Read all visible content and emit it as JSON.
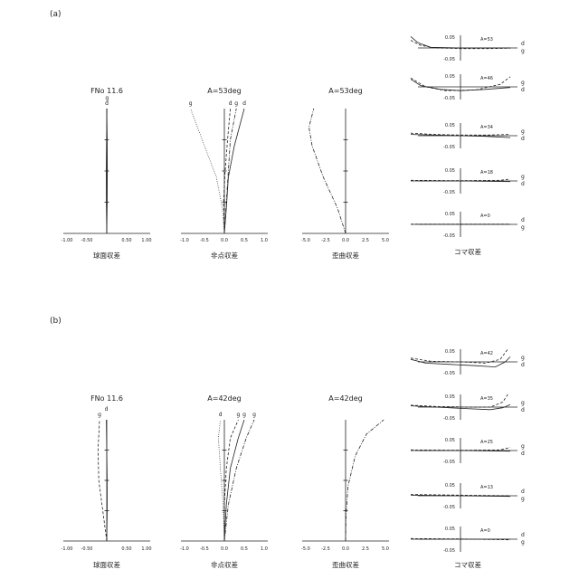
{
  "panels": [
    {
      "label": "(a)",
      "spherical": {
        "title": "FNo 11.6",
        "caption": "球面収差",
        "ticks": [
          "-1.00",
          "-0.50",
          "0.50",
          "1.00"
        ],
        "xlim": [
          -1.0,
          1.0
        ],
        "series": [
          {
            "name": "d",
            "style": "solid",
            "points": [
              [
                0,
                0
              ],
              [
                0.01,
                0.25
              ],
              [
                0.015,
                0.5
              ],
              [
                0.01,
                0.75
              ],
              [
                0,
                1
              ]
            ]
          },
          {
            "name": "g",
            "style": "solid",
            "points": [
              [
                0,
                0
              ],
              [
                -0.01,
                0.25
              ],
              [
                -0.012,
                0.5
              ],
              [
                -0.005,
                0.75
              ],
              [
                0.005,
                1
              ]
            ]
          }
        ]
      },
      "astig": {
        "title": "A=53deg",
        "caption": "非点収差",
        "ticks": [
          "-1.0",
          "-0.5",
          "0.0",
          "0.5",
          "1.0"
        ],
        "xlim": [
          -1.0,
          1.0
        ],
        "series": [
          {
            "name": "S d",
            "style": "solid",
            "points": [
              [
                0,
                0
              ],
              [
                0.05,
                0.2
              ],
              [
                0.1,
                0.45
              ],
              [
                0.25,
                0.7
              ],
              [
                0.5,
                1
              ]
            ]
          },
          {
            "name": "T d",
            "style": "dashdot",
            "points": [
              [
                0,
                0
              ],
              [
                0.05,
                0.25
              ],
              [
                0.1,
                0.5
              ],
              [
                0.15,
                0.75
              ],
              [
                0.3,
                1
              ]
            ]
          },
          {
            "name": "S g",
            "style": "dotted",
            "points": [
              [
                0,
                0
              ],
              [
                -0.05,
                0.2
              ],
              [
                -0.2,
                0.45
              ],
              [
                -0.5,
                0.7
              ],
              [
                -0.85,
                1
              ]
            ]
          },
          {
            "name": "T g",
            "style": "dashed",
            "points": [
              [
                0,
                0
              ],
              [
                -0.02,
                0.25
              ],
              [
                0.02,
                0.5
              ],
              [
                0.08,
                0.75
              ],
              [
                0.15,
                1
              ]
            ]
          }
        ],
        "labels": [
          "d",
          "g",
          "g",
          "d"
        ]
      },
      "distortion": {
        "title": "A=53deg",
        "caption": "歪曲収差",
        "ticks": [
          "-5.0",
          "-2.5",
          "0.0",
          "2.5",
          "5.0"
        ],
        "xlim": [
          -5.0,
          5.0
        ],
        "points": [
          [
            0,
            0
          ],
          [
            -1,
            0.2
          ],
          [
            -2.8,
            0.45
          ],
          [
            -4.2,
            0.7
          ],
          [
            -4.6,
            0.85
          ],
          [
            -4.0,
            1
          ]
        ]
      },
      "coma": {
        "caption": "コマ収差",
        "scale_top": "0.05",
        "scale_bottom": "-0.05",
        "rows": [
          {
            "label": "A=53",
            "ends": [
              "d",
              "g"
            ],
            "d": [
              [
                -1,
                0.9
              ],
              [
                -0.85,
                0.4
              ],
              [
                -0.6,
                0.05
              ],
              [
                0,
                0
              ],
              [
                0.6,
                0
              ],
              [
                1,
                0
              ]
            ],
            "g": [
              [
                -1,
                0.6
              ],
              [
                -0.8,
                0.2
              ],
              [
                -0.5,
                0
              ],
              [
                0,
                -0.05
              ],
              [
                0.6,
                -0.05
              ],
              [
                1,
                -0.02
              ]
            ]
          },
          {
            "label": "A=46",
            "ends": [
              "g",
              "d"
            ],
            "d": [
              [
                -1,
                0.6
              ],
              [
                -0.8,
                0.1
              ],
              [
                -0.4,
                -0.2
              ],
              [
                0,
                -0.3
              ],
              [
                0.5,
                -0.2
              ],
              [
                1,
                -0.05
              ]
            ],
            "g": [
              [
                -1,
                0.7
              ],
              [
                -0.7,
                0
              ],
              [
                -0.3,
                -0.3
              ],
              [
                0.3,
                -0.25
              ],
              [
                0.8,
                0.2
              ],
              [
                1,
                0.8
              ]
            ]
          },
          {
            "label": "A=34",
            "ends": [
              "g",
              "d"
            ],
            "d": [
              [
                -1,
                0.1
              ],
              [
                -0.5,
                0.05
              ],
              [
                0,
                0
              ],
              [
                0.5,
                -0.05
              ],
              [
                1,
                -0.15
              ]
            ],
            "g": [
              [
                -1,
                0.2
              ],
              [
                -0.5,
                0.1
              ],
              [
                0,
                0.05
              ],
              [
                0.5,
                0.05
              ],
              [
                1,
                0.1
              ]
            ]
          },
          {
            "label": "A=18",
            "ends": [
              "g",
              "d"
            ],
            "d": [
              [
                -1,
                0
              ],
              [
                0,
                0
              ],
              [
                1,
                -0.05
              ]
            ],
            "g": [
              [
                -1,
                0.05
              ],
              [
                0,
                0.02
              ],
              [
                0.8,
                0.05
              ],
              [
                1,
                0.15
              ]
            ]
          },
          {
            "label": "A=0",
            "ends": [
              "d",
              "g"
            ],
            "d": [
              [
                -1,
                0
              ],
              [
                1,
                0
              ]
            ],
            "g": [
              [
                -1,
                0.02
              ],
              [
                1,
                0.02
              ]
            ]
          }
        ]
      }
    },
    {
      "label": "(b)",
      "spherical": {
        "title": "FNo 11.6",
        "caption": "球面収差",
        "ticks": [
          "-1.00",
          "-0.50",
          "0.50",
          "1.00"
        ],
        "xlim": [
          -1.0,
          1.0
        ],
        "series": [
          {
            "name": "g",
            "style": "dashed",
            "points": [
              [
                0,
                0
              ],
              [
                -0.1,
                0.25
              ],
              [
                -0.2,
                0.5
              ],
              [
                -0.22,
                0.75
              ],
              [
                -0.18,
                1
              ]
            ]
          },
          {
            "name": "d",
            "style": "solid",
            "points": [
              [
                0,
                0
              ],
              [
                0.01,
                0.25
              ],
              [
                0.01,
                0.5
              ],
              [
                0,
                0.75
              ],
              [
                -0.01,
                1
              ]
            ]
          }
        ]
      },
      "astig": {
        "title": "A=42deg",
        "caption": "非点収差",
        "ticks": [
          "-1.0",
          "-0.5",
          "0.0",
          "0.5",
          "1.0"
        ],
        "xlim": [
          -1.0,
          1.0
        ],
        "series": [
          {
            "name": "S d",
            "style": "solid",
            "points": [
              [
                0,
                0
              ],
              [
                0.05,
                0.3
              ],
              [
                0.15,
                0.6
              ],
              [
                0.35,
                0.85
              ],
              [
                0.5,
                1
              ]
            ]
          },
          {
            "name": "T d",
            "style": "dashdot",
            "points": [
              [
                0,
                0
              ],
              [
                0.1,
                0.3
              ],
              [
                0.3,
                0.6
              ],
              [
                0.55,
                0.85
              ],
              [
                0.75,
                1
              ]
            ]
          },
          {
            "name": "S g",
            "style": "dotted",
            "points": [
              [
                0,
                0
              ],
              [
                -0.03,
                0.3
              ],
              [
                -0.1,
                0.6
              ],
              [
                -0.15,
                0.85
              ],
              [
                -0.1,
                1
              ]
            ]
          },
          {
            "name": "T g",
            "style": "dashed",
            "points": [
              [
                0,
                0
              ],
              [
                0,
                0.3
              ],
              [
                0.05,
                0.6
              ],
              [
                0.15,
                0.85
              ],
              [
                0.35,
                1
              ]
            ]
          }
        ],
        "labels": [
          "g",
          "g",
          "d",
          "g"
        ]
      },
      "distortion": {
        "title": "A=42deg",
        "caption": "歪曲収差",
        "ticks": [
          "-5.0",
          "-2.5",
          "0.0",
          "2.5",
          "5.0"
        ],
        "xlim": [
          -5.0,
          5.0
        ],
        "points": [
          [
            0,
            0
          ],
          [
            0.05,
            0.2
          ],
          [
            0.3,
            0.45
          ],
          [
            1.2,
            0.7
          ],
          [
            2.6,
            0.88
          ],
          [
            4.8,
            1
          ]
        ]
      },
      "coma": {
        "caption": "コマ収差",
        "scale_top": "0.05",
        "scale_bottom": "-0.05",
        "rows": [
          {
            "label": "A=42",
            "ends": [
              "g",
              "d"
            ],
            "d": [
              [
                -1,
                0.2
              ],
              [
                -0.7,
                -0.1
              ],
              [
                -0.2,
                -0.2
              ],
              [
                0.3,
                -0.3
              ],
              [
                0.7,
                -0.4
              ],
              [
                0.9,
                0
              ],
              [
                1,
                0.4
              ]
            ],
            "g": [
              [
                -1,
                0.3
              ],
              [
                -0.6,
                0.05
              ],
              [
                0,
                0
              ],
              [
                0.5,
                -0.1
              ],
              [
                0.8,
                0.2
              ],
              [
                0.95,
                1
              ]
            ]
          },
          {
            "label": "A=35",
            "ends": [
              "g",
              "d"
            ],
            "d": [
              [
                -1,
                0.1
              ],
              [
                -0.5,
                0
              ],
              [
                0,
                -0.1
              ],
              [
                0.6,
                -0.2
              ],
              [
                0.85,
                -0.05
              ],
              [
                1,
                0.2
              ]
            ],
            "g": [
              [
                -1,
                0.15
              ],
              [
                -0.5,
                0.05
              ],
              [
                0.2,
                0
              ],
              [
                0.6,
                0
              ],
              [
                0.85,
                0.4
              ],
              [
                0.95,
                1
              ]
            ]
          },
          {
            "label": "A=25",
            "ends": [
              "g",
              "d"
            ],
            "d": [
              [
                -1,
                0
              ],
              [
                0,
                0
              ],
              [
                1,
                -0.05
              ]
            ],
            "g": [
              [
                -1,
                0.05
              ],
              [
                0,
                0.02
              ],
              [
                0.8,
                0.05
              ],
              [
                1,
                0.25
              ]
            ]
          },
          {
            "label": "A=13",
            "ends": [
              "d",
              "g"
            ],
            "d": [
              [
                -1,
                0.05
              ],
              [
                0,
                0
              ],
              [
                1,
                -0.05
              ]
            ],
            "g": [
              [
                -1,
                0.1
              ],
              [
                0,
                0.05
              ],
              [
                1,
                0
              ]
            ]
          },
          {
            "label": "A=0",
            "ends": [
              "d",
              "g"
            ],
            "d": [
              [
                -1,
                0
              ],
              [
                1,
                0
              ]
            ],
            "g": [
              [
                -1,
                0.05
              ],
              [
                0,
                0.02
              ],
              [
                1,
                -0.05
              ]
            ]
          }
        ]
      }
    }
  ]
}
